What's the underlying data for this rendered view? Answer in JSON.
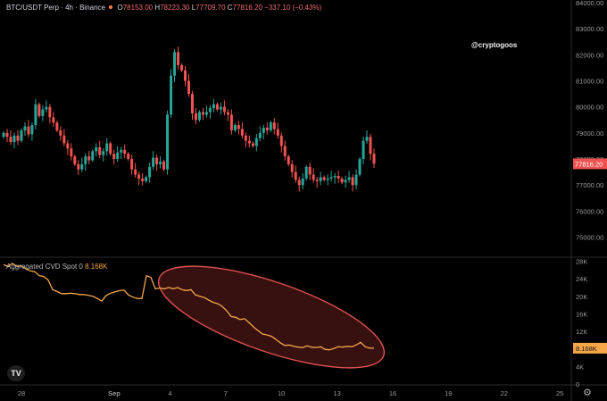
{
  "header": {
    "symbol": "BTC/USDT Perp · 4h · Binance",
    "o_label": "O",
    "o_value": "78153.00",
    "h_label": "H",
    "h_value": "78223.30",
    "l_label": "L",
    "l_value": "77709.70",
    "c_label": "C",
    "c_value": "77816.20",
    "change": "−337.10 (−0.43%)"
  },
  "watermark": "@cryptogoos",
  "current_price_label": "77816.20",
  "cvd_panel": {
    "label": "Aggregated CVD Spot 0",
    "value": "8.168K"
  },
  "colors": {
    "up": "#26a69a",
    "down": "#ef5350",
    "cvd_line": "#f7a648",
    "price_tag": "#ef5350",
    "ellipse": "#e05050",
    "ellipse_fill": "#4a1515"
  },
  "icons": {
    "logo": "tradingview-logo-icon",
    "settings": "gear-icon"
  },
  "chart_data": [
    {
      "type": "candlestick",
      "title": "BTC/USDT Perp · 4h · Binance",
      "x_ticks": [
        "28",
        "Sep",
        "4",
        "7",
        "10",
        "13",
        "16",
        "19",
        "22",
        "25"
      ],
      "x_tick_days": [
        -4,
        1,
        4,
        7,
        10,
        13,
        16,
        19,
        22,
        25
      ],
      "x_unit": "day of month (Sep = Sep 1)",
      "y_ticks": [
        75000,
        76000,
        77000,
        78000,
        79000,
        80000,
        81000,
        82000,
        83000,
        84000
      ],
      "ylim": [
        74300,
        84100
      ],
      "last_price": 77816.2,
      "closes": [
        79000,
        78850,
        78650,
        78900,
        78700,
        79100,
        79250,
        78950,
        79300,
        80100,
        79650,
        79900,
        80000,
        79600,
        79400,
        79100,
        78900,
        78600,
        78400,
        78100,
        77800,
        77600,
        77800,
        78100,
        77950,
        78300,
        78450,
        78150,
        78300,
        78600,
        78200,
        78000,
        78250,
        78350,
        78200,
        78000,
        77600,
        77400,
        77250,
        77150,
        77300,
        77700,
        78050,
        77800,
        77900,
        77600,
        79700,
        81200,
        82100,
        81600,
        81400,
        81000,
        80500,
        79750,
        79500,
        79800,
        79700,
        79800,
        79950,
        80100,
        79900,
        80000,
        79800,
        79700,
        79100,
        79300,
        79150,
        78900,
        78700,
        78600,
        78500,
        78800,
        79000,
        79200,
        79100,
        79400,
        79150,
        78900,
        78500,
        78100,
        77800,
        77500,
        77200,
        77000,
        77250,
        77700,
        77400,
        77200,
        77150,
        77300,
        77200,
        77250,
        77300,
        77350,
        77250,
        77100,
        77200,
        77300,
        77000,
        77400,
        78000,
        78700,
        78850,
        78200,
        77816.2
      ],
      "series": []
    },
    {
      "type": "line",
      "title": "Aggregated CVD Spot 0",
      "y_ticks": [
        "0",
        "4K",
        "8K",
        "12K",
        "16K",
        "20K",
        "24K",
        "28K"
      ],
      "ylim": [
        0,
        28500
      ],
      "last_value_label": "8.168K",
      "values": [
        27200,
        26800,
        27500,
        26800,
        26900,
        26300,
        25800,
        25600,
        24700,
        24500,
        23700,
        21500,
        21100,
        20600,
        20600,
        20700,
        20600,
        20400,
        20400,
        20200,
        20000,
        19500,
        18900,
        20200,
        20700,
        21000,
        21300,
        21400,
        20300,
        19800,
        19500,
        19500,
        24700,
        24300,
        21700,
        21900,
        21700,
        22000,
        21700,
        22000,
        21500,
        21300,
        21500,
        20300,
        20000,
        19700,
        19100,
        18600,
        18300,
        17700,
        16700,
        15400,
        15200,
        14700,
        14900,
        14000,
        13000,
        12200,
        11400,
        11200,
        10900,
        10200,
        9400,
        8800,
        8900,
        8600,
        8400,
        8300,
        8700,
        8400,
        8300,
        8500,
        7900,
        7800,
        8100,
        8500,
        8400,
        8600,
        8500,
        8900,
        9500,
        8500,
        8200,
        8168
      ],
      "series": []
    }
  ]
}
